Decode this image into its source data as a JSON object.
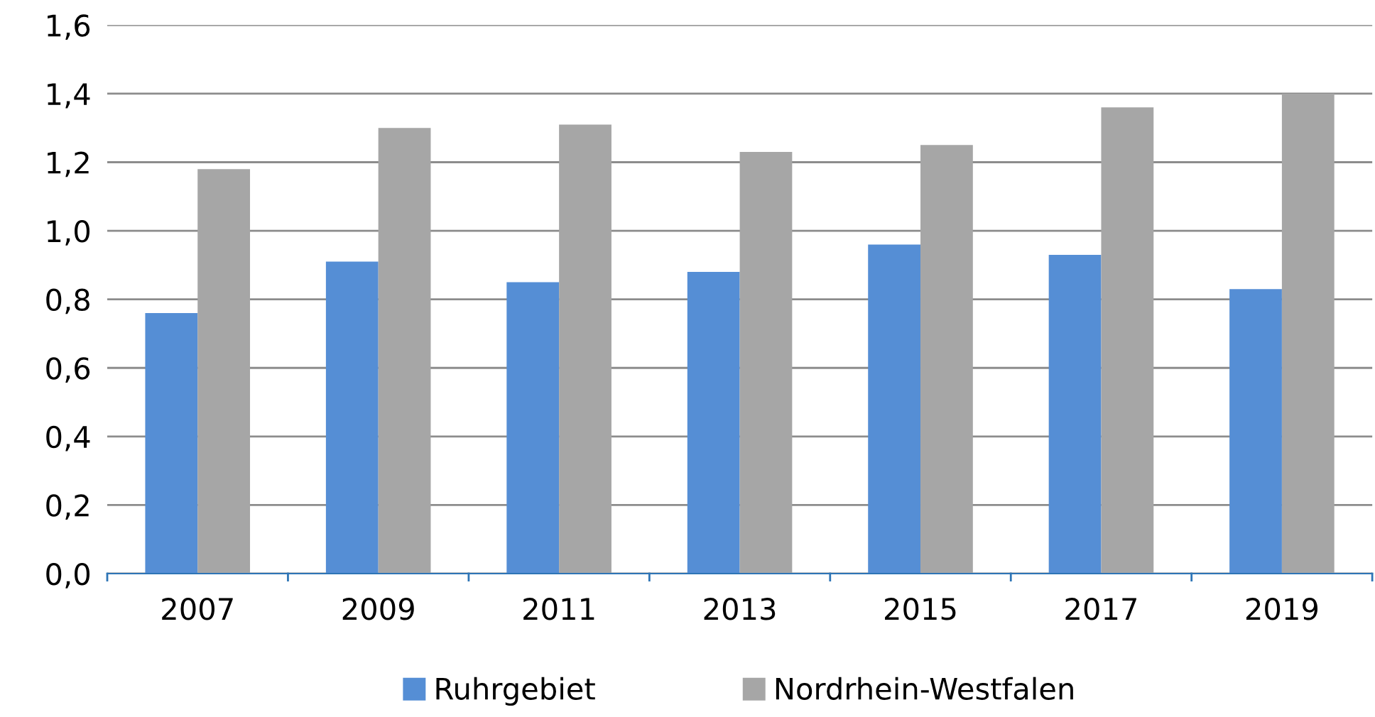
{
  "chart_data": {
    "type": "bar",
    "categories": [
      "2007",
      "2009",
      "2011",
      "2013",
      "2015",
      "2017",
      "2019"
    ],
    "series": [
      {
        "name": "Ruhrgebiet",
        "color": "#558ed5",
        "values": [
          0.76,
          0.91,
          0.85,
          0.88,
          0.96,
          0.93,
          0.83
        ]
      },
      {
        "name": "Nordrhein-Westfalen",
        "color": "#a6a6a6",
        "values": [
          1.18,
          1.3,
          1.31,
          1.23,
          1.25,
          1.36,
          1.4
        ]
      }
    ],
    "ylim": [
      0,
      1.6
    ],
    "yticks": [
      {
        "value": 0,
        "label": "0,0"
      },
      {
        "value": 0.2,
        "label": "0,2"
      },
      {
        "value": 0.4,
        "label": "0,4"
      },
      {
        "value": 0.6,
        "label": "0,6"
      },
      {
        "value": 0.8,
        "label": "0,8"
      },
      {
        "value": 1.0,
        "label": "1,0"
      },
      {
        "value": 1.2,
        "label": "1,2"
      },
      {
        "value": 1.4,
        "label": "1,4"
      },
      {
        "value": 1.6,
        "label": "1,6"
      }
    ],
    "grid": "y",
    "legend": "bottom"
  }
}
